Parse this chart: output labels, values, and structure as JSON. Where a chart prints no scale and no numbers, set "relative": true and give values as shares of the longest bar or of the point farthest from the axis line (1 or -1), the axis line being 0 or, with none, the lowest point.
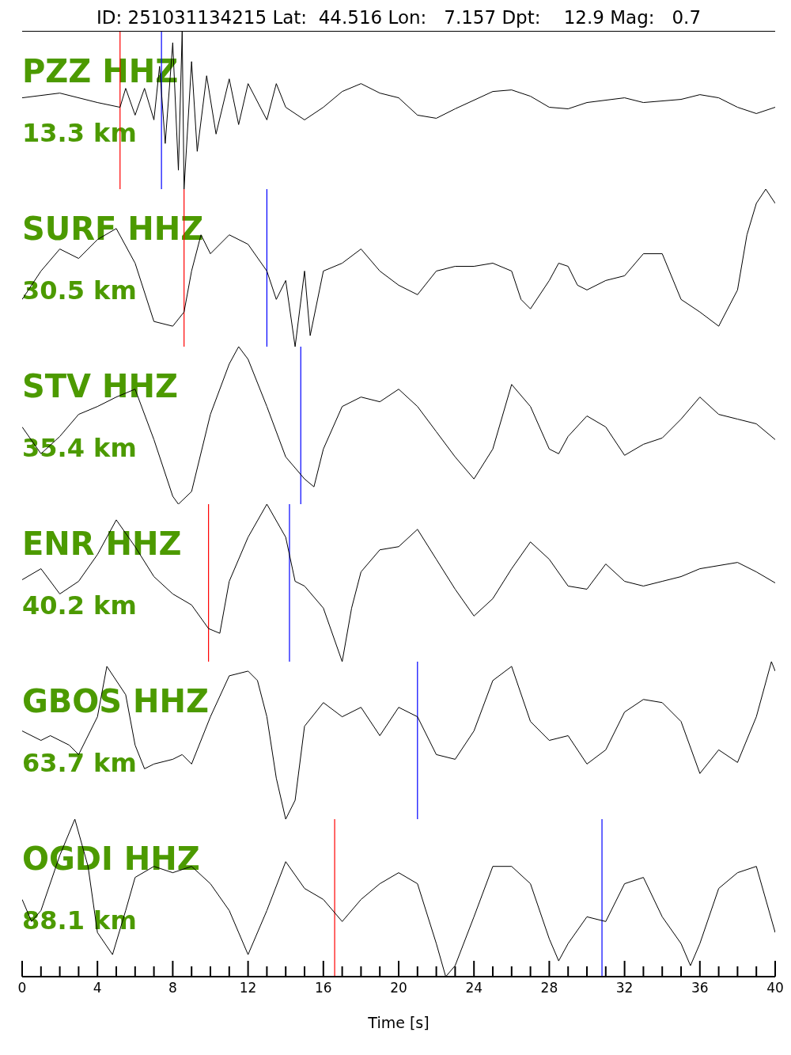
{
  "chart_data": [
    {
      "type": "line",
      "title": "ID: 251031134215 Lat:  44.516 Lon:   7.157 Dpt:    12.9 Mag:   0.7",
      "annotations": [
        "PZZ HHZ",
        "13.3 km"
      ],
      "relative": true,
      "xlim": [
        0,
        40
      ],
      "tick_labels": false,
      "color": "#000000",
      "x": [
        0,
        2,
        4,
        5.2,
        5.5,
        6,
        6.5,
        7,
        7.3,
        7.6,
        8,
        8.3,
        8.5,
        8.6,
        9,
        9.3,
        9.8,
        10.3,
        11,
        11.5,
        12,
        13,
        13.5,
        14,
        15,
        16,
        17,
        18,
        19,
        20,
        21,
        22,
        23,
        25,
        26,
        27,
        28,
        29,
        30,
        32,
        33,
        35,
        36,
        37,
        38,
        39,
        40
      ],
      "values": [
        0.58,
        0.61,
        0.55,
        0.52,
        0.64,
        0.47,
        0.64,
        0.44,
        0.78,
        0.29,
        0.93,
        0.12,
        1,
        0,
        0.81,
        0.24,
        0.72,
        0.35,
        0.7,
        0.41,
        0.67,
        0.44,
        0.67,
        0.52,
        0.44,
        0.52,
        0.62,
        0.67,
        0.61,
        0.58,
        0.47,
        0.45,
        0.51,
        0.62,
        0.63,
        0.59,
        0.52,
        0.51,
        0.55,
        0.58,
        0.55,
        0.57,
        0.6,
        0.58,
        0.52,
        0.48,
        0.52
      ],
      "ref_lines": [
        {
          "axis": "x",
          "value": 5.2,
          "color": "#ff0000"
        },
        {
          "axis": "x",
          "value": 7.4,
          "color": "#0000ff"
        }
      ]
    },
    {
      "type": "line",
      "annotations": [
        "SURF HHZ",
        "30.5 km"
      ],
      "relative": true,
      "xlim": [
        0,
        40
      ],
      "tick_labels": false,
      "color": "#000000",
      "x": [
        0,
        1,
        2,
        3,
        4,
        5,
        6,
        7,
        8,
        8.6,
        9,
        9.5,
        10,
        11,
        12,
        13,
        13.5,
        14,
        14.5,
        15,
        15.3,
        16,
        17,
        18,
        19,
        20,
        21,
        22,
        23,
        24,
        25,
        26,
        26.5,
        27,
        28,
        28.5,
        29,
        29.5,
        30,
        31,
        32,
        33,
        34,
        35,
        36,
        37,
        38,
        38.5,
        39,
        39.5,
        40
      ],
      "values": [
        0.3,
        0.48,
        0.62,
        0.56,
        0.68,
        0.75,
        0.53,
        0.16,
        0.13,
        0.22,
        0.48,
        0.71,
        0.59,
        0.71,
        0.65,
        0.48,
        0.3,
        0.42,
        0,
        0.48,
        0.07,
        0.48,
        0.53,
        0.62,
        0.48,
        0.39,
        0.33,
        0.48,
        0.51,
        0.51,
        0.53,
        0.48,
        0.3,
        0.24,
        0.42,
        0.53,
        0.51,
        0.39,
        0.36,
        0.42,
        0.45,
        0.59,
        0.59,
        0.3,
        0.22,
        0.13,
        0.36,
        0.71,
        0.91,
        1,
        0.91
      ],
      "ref_lines": [
        {
          "axis": "x",
          "value": 8.6,
          "color": "#ff0000"
        },
        {
          "axis": "x",
          "value": 13.0,
          "color": "#0000ff"
        }
      ]
    },
    {
      "type": "line",
      "annotations": [
        "STV HHZ",
        "35.4 km"
      ],
      "relative": true,
      "xlim": [
        0,
        40
      ],
      "tick_labels": false,
      "color": "#000000",
      "x": [
        0,
        1,
        2,
        3,
        4,
        5,
        6,
        7,
        8,
        8.3,
        9,
        10,
        11,
        11.5,
        12,
        13,
        14,
        15,
        15.5,
        16,
        17,
        18,
        19,
        20,
        21,
        22,
        23,
        24,
        25,
        26,
        27,
        28,
        28.5,
        29,
        30,
        31,
        32,
        33,
        34,
        35,
        36,
        37,
        38,
        39,
        40
      ],
      "values": [
        0.49,
        0.32,
        0.43,
        0.57,
        0.62,
        0.68,
        0.73,
        0.41,
        0.05,
        0,
        0.08,
        0.57,
        0.89,
        1,
        0.92,
        0.62,
        0.3,
        0.16,
        0.11,
        0.35,
        0.62,
        0.68,
        0.65,
        0.73,
        0.62,
        0.46,
        0.3,
        0.16,
        0.35,
        0.76,
        0.62,
        0.35,
        0.32,
        0.43,
        0.56,
        0.49,
        0.31,
        0.38,
        0.42,
        0.54,
        0.68,
        0.57,
        0.54,
        0.51,
        0.41
      ],
      "ref_lines": [
        {
          "axis": "x",
          "value": 14.8,
          "color": "#0000ff"
        }
      ]
    },
    {
      "type": "line",
      "annotations": [
        "ENR HHZ",
        "40.2 km"
      ],
      "relative": true,
      "xlim": [
        0,
        40
      ],
      "tick_labels": false,
      "color": "#000000",
      "x": [
        0,
        1,
        2,
        3,
        4,
        5,
        6,
        7,
        8,
        9,
        9.9,
        10.5,
        11,
        12,
        13,
        14,
        14.5,
        15,
        16,
        17,
        17.5,
        18,
        19,
        20,
        21,
        22,
        23,
        24,
        25,
        26,
        27,
        28,
        29,
        30,
        31,
        32,
        33,
        34,
        35,
        36,
        38,
        39,
        40
      ],
      "values": [
        0.52,
        0.59,
        0.43,
        0.51,
        0.68,
        0.9,
        0.73,
        0.54,
        0.43,
        0.36,
        0.21,
        0.18,
        0.51,
        0.79,
        1,
        0.79,
        0.51,
        0.48,
        0.34,
        0,
        0.34,
        0.57,
        0.71,
        0.73,
        0.84,
        0.65,
        0.46,
        0.29,
        0.4,
        0.59,
        0.76,
        0.65,
        0.48,
        0.46,
        0.62,
        0.51,
        0.48,
        0.51,
        0.54,
        0.59,
        0.63,
        0.57,
        0.5
      ],
      "ref_lines": [
        {
          "axis": "x",
          "value": 9.9,
          "color": "#ff0000"
        },
        {
          "axis": "x",
          "value": 14.2,
          "color": "#0000ff"
        }
      ]
    },
    {
      "type": "line",
      "annotations": [
        "GBOS HHZ",
        "63.7 km"
      ],
      "relative": true,
      "xlim": [
        0,
        40
      ],
      "tick_labels": false,
      "color": "#000000",
      "x": [
        0,
        1,
        1.5,
        2.5,
        3,
        4,
        4.5,
        5.5,
        6,
        6.5,
        7,
        8,
        8.5,
        9,
        10,
        11,
        12,
        12.5,
        13,
        13.5,
        14,
        14.5,
        15,
        16,
        17,
        18,
        19,
        20,
        21,
        22,
        23,
        24,
        25,
        26,
        27,
        28,
        29,
        30,
        31,
        32,
        33,
        34,
        35,
        36,
        37,
        38,
        39,
        39.8,
        40
      ],
      "values": [
        0.56,
        0.5,
        0.53,
        0.47,
        0.41,
        0.65,
        0.97,
        0.79,
        0.47,
        0.32,
        0.35,
        0.38,
        0.41,
        0.35,
        0.65,
        0.91,
        0.94,
        0.88,
        0.65,
        0.26,
        0,
        0.12,
        0.59,
        0.74,
        0.65,
        0.71,
        0.53,
        0.71,
        0.65,
        0.41,
        0.38,
        0.56,
        0.88,
        0.97,
        0.62,
        0.5,
        0.53,
        0.35,
        0.44,
        0.68,
        0.76,
        0.74,
        0.62,
        0.29,
        0.44,
        0.36,
        0.65,
        1,
        0.94
      ],
      "ref_lines": [
        {
          "axis": "x",
          "value": 21.0,
          "color": "#0000ff"
        }
      ]
    },
    {
      "type": "line",
      "annotations": [
        "OGDI HHZ",
        "88.1 km"
      ],
      "relative": true,
      "xlim": [
        0,
        40
      ],
      "tick_labels": "x",
      "xlabel": "Time [s]",
      "color": "#000000",
      "xticks": [
        0,
        {
          "value": 1,
          "label": null
        },
        {
          "value": 2,
          "label": null
        },
        {
          "value": 3,
          "label": null
        },
        4,
        {
          "value": 5,
          "label": null
        },
        {
          "value": 6,
          "label": null
        },
        {
          "value": 7,
          "label": null
        },
        8,
        {
          "value": 9,
          "label": null
        },
        {
          "value": 10,
          "label": null
        },
        {
          "value": 11,
          "label": null
        },
        12,
        {
          "value": 13,
          "label": null
        },
        {
          "value": 14,
          "label": null
        },
        {
          "value": 15,
          "label": null
        },
        16,
        {
          "value": 17,
          "label": null
        },
        {
          "value": 18,
          "label": null
        },
        {
          "value": 19,
          "label": null
        },
        20,
        {
          "value": 21,
          "label": null
        },
        {
          "value": 22,
          "label": null
        },
        {
          "value": 23,
          "label": null
        },
        24,
        {
          "value": 25,
          "label": null
        },
        {
          "value": 26,
          "label": null
        },
        {
          "value": 27,
          "label": null
        },
        28,
        {
          "value": 29,
          "label": null
        },
        {
          "value": 30,
          "label": null
        },
        {
          "value": 31,
          "label": null
        },
        32,
        {
          "value": 33,
          "label": null
        },
        {
          "value": 34,
          "label": null
        },
        {
          "value": 35,
          "label": null
        },
        36,
        {
          "value": 37,
          "label": null
        },
        {
          "value": 38,
          "label": null
        },
        {
          "value": 39,
          "label": null
        },
        40
      ],
      "x": [
        0,
        0.5,
        1,
        2,
        2.8,
        3.5,
        4,
        4.8,
        5.5,
        6,
        7,
        8,
        9,
        10,
        11,
        12,
        13,
        14,
        15,
        16,
        17,
        18,
        19,
        20,
        21,
        22,
        22.5,
        23,
        24,
        25,
        26,
        27,
        28,
        28.5,
        29,
        30,
        31,
        32,
        33,
        34,
        35,
        35.5,
        36,
        37,
        38,
        39,
        40
      ],
      "values": [
        0.49,
        0.35,
        0.42,
        0.77,
        1,
        0.7,
        0.28,
        0.14,
        0.42,
        0.63,
        0.7,
        0.66,
        0.7,
        0.59,
        0.42,
        0.14,
        0.42,
        0.73,
        0.56,
        0.49,
        0.35,
        0.49,
        0.59,
        0.66,
        0.59,
        0.21,
        0,
        0.07,
        0.38,
        0.7,
        0.7,
        0.59,
        0.24,
        0.1,
        0.21,
        0.38,
        0.35,
        0.59,
        0.63,
        0.38,
        0.21,
        0.07,
        0.21,
        0.56,
        0.66,
        0.7,
        0.28
      ],
      "ref_lines": [
        {
          "axis": "x",
          "value": 16.6,
          "color": "#ff0000"
        },
        {
          "axis": "x",
          "value": 30.8,
          "color": "#0000ff"
        }
      ]
    }
  ]
}
